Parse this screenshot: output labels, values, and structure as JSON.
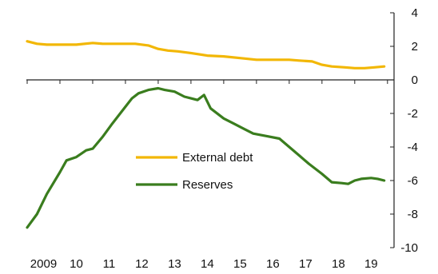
{
  "chart_data": {
    "type": "line",
    "title": "",
    "xlabel": "",
    "ylabel": "",
    "xlim": [
      2009,
      2020.2
    ],
    "ylim": [
      -10,
      4
    ],
    "y_axis_position": "right",
    "grid": false,
    "legend_placement": "center",
    "x_ticks": [
      {
        "value": 2009,
        "label": "2009"
      },
      {
        "value": 2010,
        "label": "10"
      },
      {
        "value": 2011,
        "label": "11"
      },
      {
        "value": 2012,
        "label": "12"
      },
      {
        "value": 2013,
        "label": "13"
      },
      {
        "value": 2014,
        "label": "14"
      },
      {
        "value": 2015,
        "label": "15"
      },
      {
        "value": 2016,
        "label": "16"
      },
      {
        "value": 2017,
        "label": "17"
      },
      {
        "value": 2018,
        "label": "18"
      },
      {
        "value": 2019,
        "label": "19"
      }
    ],
    "y_ticks": [
      {
        "value": 4,
        "label": "4"
      },
      {
        "value": 2,
        "label": "2"
      },
      {
        "value": 0,
        "label": "0"
      },
      {
        "value": -2,
        "label": "-2"
      },
      {
        "value": -4,
        "label": "-4"
      },
      {
        "value": -6,
        "label": "-6"
      },
      {
        "value": -8,
        "label": "-8"
      },
      {
        "value": -10,
        "label": "-10"
      }
    ],
    "series": [
      {
        "name": "External debt",
        "color": "#f2b705",
        "x": [
          2009,
          2009.3,
          2009.6,
          2010,
          2010.5,
          2011,
          2011.3,
          2011.6,
          2012,
          2012.3,
          2012.7,
          2013,
          2013.3,
          2013.6,
          2014,
          2014.5,
          2015,
          2015.5,
          2016,
          2016.5,
          2017,
          2017.3,
          2017.7,
          2018,
          2018.3,
          2018.7,
          2019,
          2019.3,
          2019.6,
          2019.9
        ],
        "y": [
          2.3,
          2.15,
          2.1,
          2.1,
          2.1,
          2.2,
          2.15,
          2.15,
          2.15,
          2.15,
          2.05,
          1.85,
          1.75,
          1.7,
          1.6,
          1.45,
          1.4,
          1.3,
          1.2,
          1.2,
          1.2,
          1.15,
          1.1,
          0.9,
          0.8,
          0.75,
          0.7,
          0.7,
          0.75,
          0.8
        ]
      },
      {
        "name": "Reserves",
        "color": "#3a7d1e",
        "x": [
          2009,
          2009.3,
          2009.6,
          2010,
          2010.2,
          2010.5,
          2010.8,
          2011,
          2011.3,
          2011.6,
          2012,
          2012.2,
          2012.4,
          2012.7,
          2013,
          2013.2,
          2013.5,
          2013.8,
          2014,
          2014.2,
          2014.4,
          2014.6,
          2015,
          2015.3,
          2015.6,
          2015.9,
          2016.3,
          2016.7,
          2017,
          2017.3,
          2017.6,
          2018,
          2018.3,
          2018.6,
          2018.8,
          2019,
          2019.2,
          2019.5,
          2019.7,
          2019.9
        ],
        "y": [
          -8.8,
          -8,
          -6.8,
          -5.5,
          -4.8,
          -4.6,
          -4.2,
          -4.1,
          -3.4,
          -2.6,
          -1.6,
          -1.1,
          -0.8,
          -0.6,
          -0.5,
          -0.6,
          -0.7,
          -1.0,
          -1.1,
          -1.2,
          -0.9,
          -1.7,
          -2.3,
          -2.6,
          -2.9,
          -3.2,
          -3.35,
          -3.5,
          -4.0,
          -4.5,
          -5.0,
          -5.6,
          -6.1,
          -6.15,
          -6.2,
          -6.0,
          -5.9,
          -5.85,
          -5.9,
          -6.0
        ]
      }
    ],
    "legend": [
      {
        "label": "External debt",
        "color": "#f2b705"
      },
      {
        "label": "Reserves",
        "color": "#3a7d1e"
      }
    ]
  }
}
